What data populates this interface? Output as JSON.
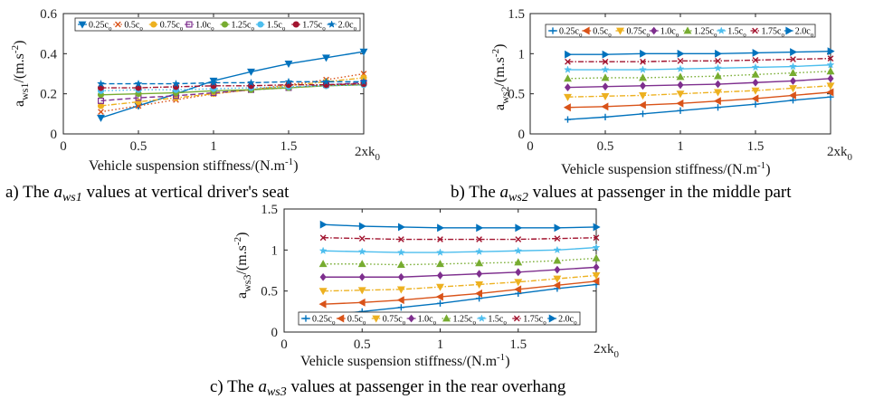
{
  "panels": [
    {
      "id": "a",
      "ylabel_main": "a",
      "ylabel_sub": "ws1",
      "ylabel_unit": "/(m.s",
      "ylabel_exp": "-2",
      "ylabel_close": ")",
      "xlabel_main": "Vehicle suspension stiffness/(N.m",
      "xlabel_exp": "-1",
      "xlabel_close": ")",
      "x_end_main": "2xk",
      "x_end_sub": "0",
      "caption_prefix": "a) The ",
      "caption_var_main": "a",
      "caption_var_sub": "ws1",
      "caption_suffix": " values at vertical driver's seat"
    },
    {
      "id": "b",
      "ylabel_main": "a",
      "ylabel_sub": "ws2",
      "ylabel_unit": "/(m.s",
      "ylabel_exp": "-2",
      "ylabel_close": ")",
      "xlabel_main": "Vehicle suspension stiffness/(N.m",
      "xlabel_exp": "-1",
      "xlabel_close": ")",
      "x_end_main": "2xk",
      "x_end_sub": "0",
      "caption_prefix": "b) The ",
      "caption_var_main": "a",
      "caption_var_sub": "ws2",
      "caption_suffix": " values at passenger in the middle part"
    },
    {
      "id": "c",
      "ylabel_main": "a",
      "ylabel_sub": "ws3",
      "ylabel_unit": "/(m.s",
      "ylabel_exp": "-2",
      "ylabel_close": ")",
      "xlabel_main": "Vehicle suspension stiffness/(N.m",
      "xlabel_exp": "-1",
      "xlabel_close": ")",
      "x_end_main": "2xk",
      "x_end_sub": "0",
      "caption_prefix": "c) The ",
      "caption_var_main": "a",
      "caption_var_sub": "ws3",
      "caption_suffix": " values at passenger in the rear overhang"
    }
  ],
  "series_style": [
    {
      "color": "#0072BD",
      "marker": "triangle-down",
      "dash": "solid"
    },
    {
      "color": "#D95319",
      "marker": "x",
      "dash": "dotted"
    },
    {
      "color": "#EDB120",
      "marker": "circle",
      "dash": "dashdot"
    },
    {
      "color": "#7E2F8E",
      "marker": "square",
      "dash": "dashed"
    },
    {
      "color": "#77AC30",
      "marker": "circle",
      "dash": "solid"
    },
    {
      "color": "#4DBEEE",
      "marker": "circle",
      "dash": "dotted"
    },
    {
      "color": "#A2142F",
      "marker": "circle",
      "dash": "dashdot"
    },
    {
      "color": "#0072BD",
      "marker": "star",
      "dash": "dashed"
    }
  ],
  "series_style_bc": [
    {
      "color": "#0072BD",
      "marker": "plus",
      "dash": "solid"
    },
    {
      "color": "#D95319",
      "marker": "triangle-left",
      "dash": "solid"
    },
    {
      "color": "#EDB120",
      "marker": "triangle-down",
      "dash": "dashdot"
    },
    {
      "color": "#7E2F8E",
      "marker": "diamond",
      "dash": "solid"
    },
    {
      "color": "#77AC30",
      "marker": "triangle-up",
      "dash": "dotted"
    },
    {
      "color": "#4DBEEE",
      "marker": "star",
      "dash": "solid"
    },
    {
      "color": "#A2142F",
      "marker": "x",
      "dash": "dashdot"
    },
    {
      "color": "#0072BD",
      "marker": "triangle-right",
      "dash": "solid"
    }
  ],
  "chart_data": [
    {
      "type": "line",
      "x": [
        0.25,
        0.5,
        0.75,
        1.0,
        1.25,
        1.5,
        1.75,
        2.0
      ],
      "xlim": [
        0,
        2
      ],
      "xticks": [
        "0",
        "0.5",
        "1",
        "1.5"
      ],
      "ylim": [
        0,
        0.6
      ],
      "yticks": [
        "0",
        "0.2",
        "0.4",
        "0.6"
      ],
      "series": [
        {
          "name": "0.25c",
          "values": [
            0.08,
            0.14,
            0.2,
            0.265,
            0.31,
            0.35,
            0.38,
            0.41
          ]
        },
        {
          "name": "0.5c",
          "values": [
            0.11,
            0.14,
            0.17,
            0.2,
            0.22,
            0.245,
            0.27,
            0.3
          ]
        },
        {
          "name": "0.75c",
          "values": [
            0.14,
            0.16,
            0.18,
            0.2,
            0.22,
            0.24,
            0.26,
            0.28
          ]
        },
        {
          "name": "1.0c",
          "values": [
            0.165,
            0.18,
            0.19,
            0.205,
            0.22,
            0.23,
            0.245,
            0.255
          ]
        },
        {
          "name": "1.25c",
          "values": [
            0.195,
            0.2,
            0.205,
            0.215,
            0.22,
            0.23,
            0.24,
            0.245
          ]
        },
        {
          "name": "1.5c",
          "values": [
            0.215,
            0.22,
            0.22,
            0.225,
            0.23,
            0.235,
            0.24,
            0.245
          ]
        },
        {
          "name": "1.75c",
          "values": [
            0.23,
            0.23,
            0.235,
            0.24,
            0.24,
            0.245,
            0.245,
            0.25
          ]
        },
        {
          "name": "2.0c",
          "values": [
            0.25,
            0.25,
            0.25,
            0.255,
            0.255,
            0.26,
            0.26,
            0.26
          ]
        }
      ]
    },
    {
      "type": "line",
      "x": [
        0.25,
        0.5,
        0.75,
        1.0,
        1.25,
        1.5,
        1.75,
        2.0
      ],
      "xlim": [
        0,
        2
      ],
      "xticks": [
        "0",
        "0.5",
        "1",
        "1.5"
      ],
      "ylim": [
        0,
        1.5
      ],
      "yticks": [
        "0",
        "0.5",
        "1",
        "1.5"
      ],
      "series": [
        {
          "name": "0.25c",
          "values": [
            0.18,
            0.21,
            0.25,
            0.29,
            0.33,
            0.37,
            0.42,
            0.46
          ]
        },
        {
          "name": "0.5c",
          "values": [
            0.33,
            0.34,
            0.36,
            0.38,
            0.41,
            0.44,
            0.48,
            0.52
          ]
        },
        {
          "name": "0.75c",
          "values": [
            0.46,
            0.47,
            0.48,
            0.5,
            0.52,
            0.54,
            0.57,
            0.6
          ]
        },
        {
          "name": "1.0c",
          "values": [
            0.58,
            0.59,
            0.6,
            0.61,
            0.62,
            0.64,
            0.66,
            0.69
          ]
        },
        {
          "name": "1.25c",
          "values": [
            0.69,
            0.7,
            0.7,
            0.71,
            0.72,
            0.74,
            0.76,
            0.78
          ]
        },
        {
          "name": "1.5c",
          "values": [
            0.8,
            0.8,
            0.8,
            0.81,
            0.82,
            0.83,
            0.84,
            0.86
          ]
        },
        {
          "name": "1.75c",
          "values": [
            0.9,
            0.9,
            0.9,
            0.91,
            0.91,
            0.92,
            0.93,
            0.94
          ]
        },
        {
          "name": "2.0c",
          "values": [
            0.99,
            0.99,
            1.0,
            1.0,
            1.0,
            1.01,
            1.02,
            1.03
          ]
        }
      ]
    },
    {
      "type": "line",
      "x": [
        0.25,
        0.5,
        0.75,
        1.0,
        1.25,
        1.5,
        1.75,
        2.0
      ],
      "xlim": [
        0,
        2
      ],
      "xticks": [
        "0",
        "0.5",
        "1",
        "1.5"
      ],
      "ylim": [
        0,
        1.5
      ],
      "yticks": [
        "0",
        "0.5",
        "1",
        "1.5"
      ],
      "series": [
        {
          "name": "0.25c",
          "values": [
            0.2,
            0.25,
            0.3,
            0.35,
            0.41,
            0.47,
            0.53,
            0.58
          ]
        },
        {
          "name": "0.5c",
          "values": [
            0.34,
            0.36,
            0.39,
            0.43,
            0.47,
            0.52,
            0.57,
            0.62
          ]
        },
        {
          "name": "0.75c",
          "values": [
            0.5,
            0.51,
            0.52,
            0.55,
            0.58,
            0.61,
            0.65,
            0.69
          ]
        },
        {
          "name": "1.0c",
          "values": [
            0.67,
            0.67,
            0.67,
            0.69,
            0.71,
            0.73,
            0.76,
            0.79
          ]
        },
        {
          "name": "1.25c",
          "values": [
            0.83,
            0.83,
            0.82,
            0.83,
            0.84,
            0.85,
            0.87,
            0.9
          ]
        },
        {
          "name": "1.5c",
          "values": [
            0.99,
            0.98,
            0.97,
            0.97,
            0.98,
            0.99,
            1.0,
            1.03
          ]
        },
        {
          "name": "1.75c",
          "values": [
            1.15,
            1.14,
            1.13,
            1.13,
            1.13,
            1.13,
            1.14,
            1.15
          ]
        },
        {
          "name": "2.0c",
          "values": [
            1.31,
            1.29,
            1.28,
            1.27,
            1.27,
            1.27,
            1.27,
            1.28
          ]
        }
      ]
    }
  ],
  "legend_sub": "o"
}
